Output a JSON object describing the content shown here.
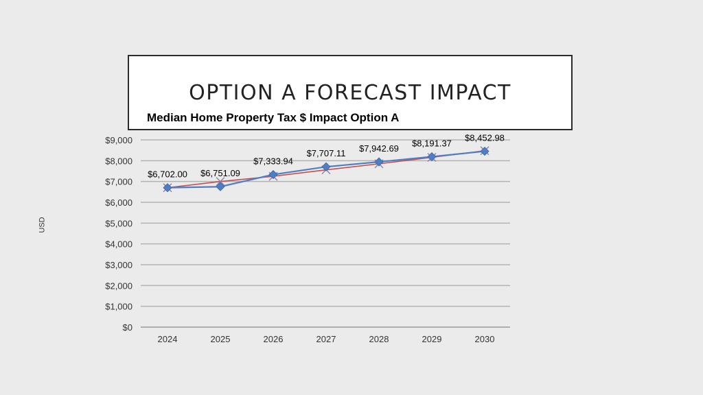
{
  "slide": {
    "title": "OPTION A FORECAST IMPACT"
  },
  "chart_data": {
    "type": "line",
    "title": "Median Home Property Tax $ Impact Option A",
    "ylabel": "USD",
    "xlabel": "",
    "categories": [
      "2024",
      "2025",
      "2026",
      "2027",
      "2028",
      "2029",
      "2030"
    ],
    "ylim": [
      0,
      9000
    ],
    "yticks": [
      0,
      1000,
      2000,
      3000,
      4000,
      5000,
      6000,
      7000,
      8000,
      9000
    ],
    "ytick_labels": [
      "$0",
      "$1,000",
      "$2,000",
      "$3,000",
      "$4,000",
      "$5,000",
      "$6,000",
      "$7,000",
      "$8,000",
      "$9,000"
    ],
    "grid": true,
    "series": [
      {
        "marker": "diamond",
        "color": "#4f7ec4",
        "values": [
          6702.0,
          6751.09,
          7333.94,
          7707.11,
          7942.69,
          8191.37,
          8452.98
        ],
        "data_labels": [
          "$6,702.00",
          "$6,751.09",
          "$7,333.94",
          "$7,707.11",
          "$7,942.69",
          "$8,191.37",
          "$8,452.98"
        ]
      },
      {
        "marker": "x",
        "color": "#c0504d",
        "values": [
          6702,
          7000,
          7250,
          7560,
          7850,
          8160,
          8480
        ]
      }
    ]
  }
}
